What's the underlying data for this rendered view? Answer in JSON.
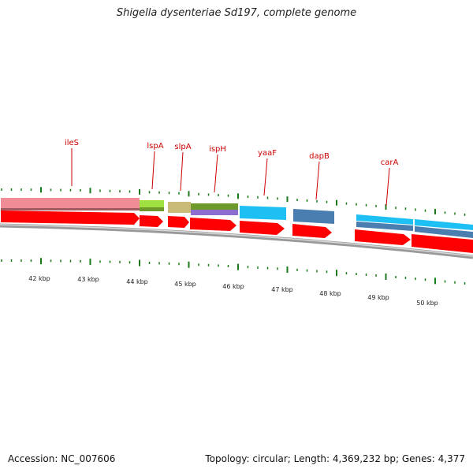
{
  "title": "Shigella dysenteriae Sd197, complete genome",
  "accession": "Accession: NC_007606",
  "summary": "Topology: circular; Length: 4,369,232 bp; Genes: 4,377",
  "colors": {
    "cds": "#ff0000",
    "label": "#cc0000",
    "tick": "#1a7a1a",
    "backbone": "#888888"
  },
  "gene_labels": [
    "ileS",
    "lspA",
    "slpA",
    "ispH",
    "yaaF",
    "dapB",
    "carA"
  ],
  "scale_labels": [
    "42 kbp",
    "43 kbp",
    "44 kbp",
    "45 kbp",
    "46 kbp",
    "47 kbp",
    "48 kbp",
    "49 kbp",
    "50 kbp"
  ],
  "category_features": [
    {
      "name": "ileS",
      "color": "#f08c96"
    },
    {
      "name": "lspA",
      "color": "#a0e040"
    },
    {
      "name": "slpA",
      "color": "#c8bc78"
    },
    {
      "name": "ispH",
      "color": "#6e9a2c"
    },
    {
      "name": "ispH-2",
      "color": "#8c6ed2"
    },
    {
      "name": "yaaF",
      "color": "#1ec0f4"
    },
    {
      "name": "dapB",
      "color": "#4a7eb0"
    },
    {
      "name": "carA",
      "color": "#1ec0f4"
    },
    {
      "name": "carA-2",
      "color": "#4a7eb0"
    }
  ]
}
